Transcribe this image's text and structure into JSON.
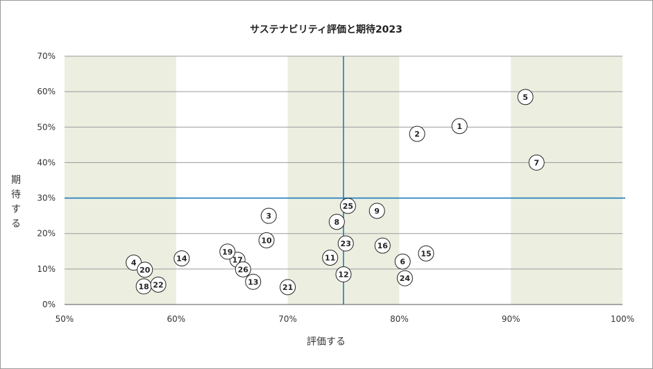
{
  "chart_data": {
    "type": "scatter",
    "title": "サステナビリティ評価と期待2023",
    "xlabel": "評価する",
    "ylabel": "期待する",
    "xlim": [
      50,
      100
    ],
    "ylim": [
      0,
      70
    ],
    "xticks": [
      50,
      60,
      70,
      80,
      90,
      100
    ],
    "yticks": [
      0,
      10,
      20,
      30,
      40,
      50,
      60,
      70
    ],
    "tick_suffix": "%",
    "grid": "horizontal",
    "shaded_x_bands": [
      [
        50,
        60
      ],
      [
        70,
        80
      ],
      [
        90,
        100
      ]
    ],
    "reference_lines": {
      "x": 75,
      "y": 30,
      "color": "#1a7bbf"
    },
    "band_color": "#eceee0",
    "points": [
      {
        "label": "1",
        "x": 85.4,
        "y": 50.3
      },
      {
        "label": "2",
        "x": 81.6,
        "y": 48.1
      },
      {
        "label": "3",
        "x": 68.3,
        "y": 25.0
      },
      {
        "label": "4",
        "x": 56.2,
        "y": 11.8
      },
      {
        "label": "5",
        "x": 91.3,
        "y": 58.5
      },
      {
        "label": "6",
        "x": 80.3,
        "y": 12.1
      },
      {
        "label": "7",
        "x": 92.3,
        "y": 40.0
      },
      {
        "label": "8",
        "x": 74.4,
        "y": 23.3
      },
      {
        "label": "9",
        "x": 78.0,
        "y": 26.4
      },
      {
        "label": "10",
        "x": 68.1,
        "y": 18.1
      },
      {
        "label": "11",
        "x": 73.8,
        "y": 13.2
      },
      {
        "label": "12",
        "x": 75.0,
        "y": 8.5
      },
      {
        "label": "13",
        "x": 66.9,
        "y": 6.4
      },
      {
        "label": "14",
        "x": 60.5,
        "y": 13.0
      },
      {
        "label": "15",
        "x": 82.4,
        "y": 14.4
      },
      {
        "label": "16",
        "x": 78.5,
        "y": 16.6
      },
      {
        "label": "17",
        "x": 65.5,
        "y": 12.6
      },
      {
        "label": "18",
        "x": 57.1,
        "y": 5.1
      },
      {
        "label": "19",
        "x": 64.6,
        "y": 14.9
      },
      {
        "label": "20",
        "x": 57.2,
        "y": 9.8
      },
      {
        "label": "21",
        "x": 70.0,
        "y": 4.9
      },
      {
        "label": "22",
        "x": 58.4,
        "y": 5.6
      },
      {
        "label": "23",
        "x": 75.2,
        "y": 17.2
      },
      {
        "label": "24",
        "x": 80.5,
        "y": 7.4
      },
      {
        "label": "25",
        "x": 75.4,
        "y": 27.8
      },
      {
        "label": "26",
        "x": 66.0,
        "y": 9.9
      }
    ]
  }
}
